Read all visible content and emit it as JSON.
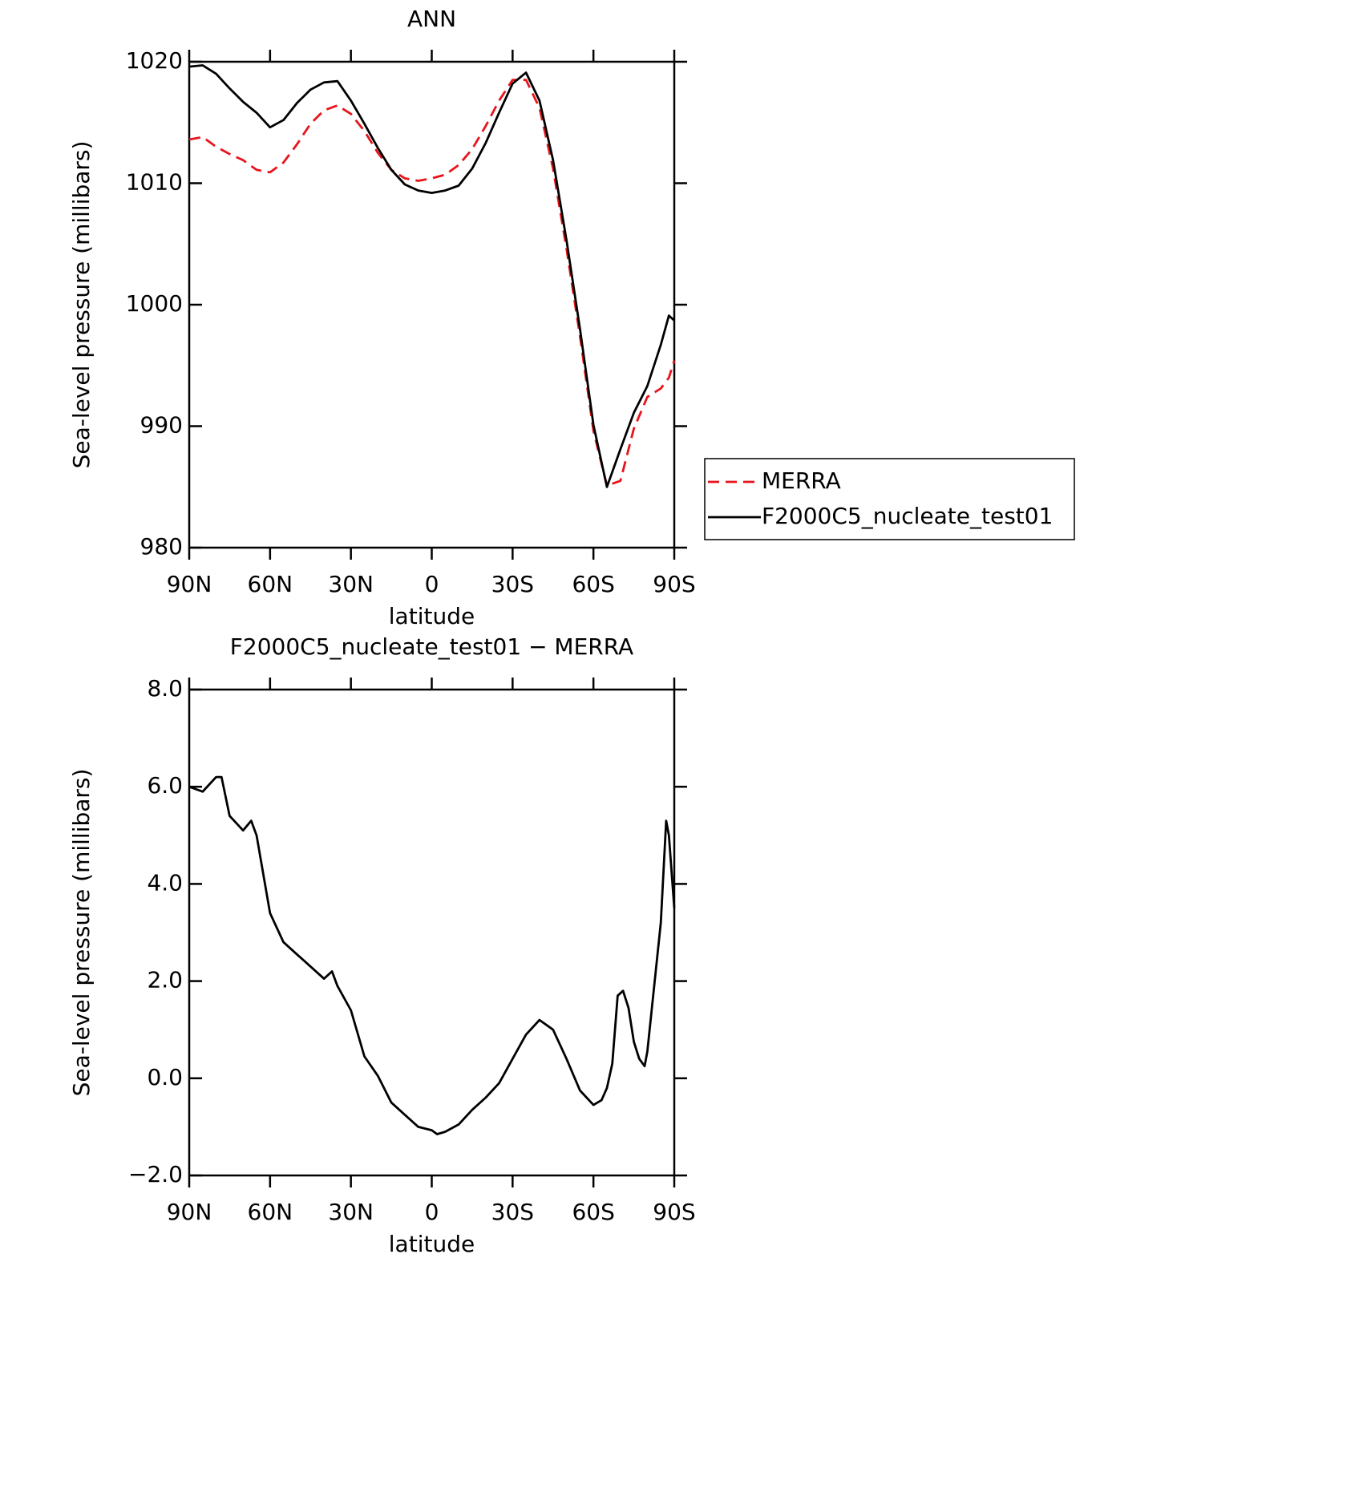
{
  "chart_data": [
    {
      "type": "line",
      "title": "ANN",
      "ylabel": "Sea-level pressure (millibars)",
      "xlabel": "latitude",
      "x": [
        90,
        85,
        80,
        75,
        70,
        65,
        60,
        55,
        50,
        45,
        40,
        35,
        30,
        25,
        20,
        15,
        10,
        5,
        0,
        -5,
        -10,
        -15,
        -20,
        -25,
        -30,
        -35,
        -40,
        -45,
        -50,
        -55,
        -60,
        -65,
        -70,
        -75,
        -80,
        -85,
        -88,
        -90
      ],
      "series": [
        {
          "name": "MERRA",
          "color": "#e8141b",
          "linestyle": "dashed",
          "values": [
            1013.6,
            1013.8,
            1013.0,
            1012.4,
            1011.9,
            1011.1,
            1010.9,
            1011.7,
            1013.2,
            1014.9,
            1016.0,
            1016.4,
            1015.7,
            1014.3,
            1012.5,
            1011.1,
            1010.4,
            1010.2,
            1010.4,
            1010.7,
            1011.5,
            1012.8,
            1014.7,
            1016.8,
            1018.5,
            1018.5,
            1016.2,
            1011.2,
            1004.6,
            997.4,
            989.6,
            985.1,
            985.5,
            989.8,
            992.4,
            993.1,
            994.0,
            995.4
          ]
        },
        {
          "name": "F2000C5_nucleate_test01",
          "color": "#000000",
          "linestyle": "solid",
          "values": [
            1019.6,
            1019.7,
            1019.0,
            1017.8,
            1016.7,
            1015.8,
            1014.6,
            1015.2,
            1016.6,
            1017.7,
            1018.3,
            1018.4,
            1016.8,
            1014.9,
            1012.9,
            1011.1,
            1009.9,
            1009.4,
            1009.2,
            1009.4,
            1009.8,
            1011.2,
            1013.3,
            1015.8,
            1018.2,
            1019.1,
            1016.8,
            1011.9,
            1005.3,
            998.0,
            990.1,
            985.0,
            988.1,
            991.1,
            993.3,
            996.7,
            999.1,
            998.7
          ]
        }
      ],
      "xlim": [
        90,
        -90
      ],
      "xticks": [
        {
          "value": 90,
          "label": "90N"
        },
        {
          "value": 60,
          "label": "60N"
        },
        {
          "value": 30,
          "label": "30N"
        },
        0,
        {
          "value": -30,
          "label": "30S"
        },
        {
          "value": -60,
          "label": "60S"
        },
        {
          "value": -90,
          "label": "90S"
        }
      ],
      "ylim": [
        980,
        1020
      ],
      "yticks": [
        980,
        990,
        1000,
        1010,
        1020
      ],
      "legend": "right"
    },
    {
      "type": "line",
      "title": "F2000C5_nucleate_test01 − MERRA",
      "ylabel": "Sea-level pressure (millibars)",
      "xlabel": "latitude",
      "x": [
        90,
        85,
        80,
        78,
        75,
        70,
        67,
        65,
        60,
        55,
        50,
        45,
        40,
        37,
        35,
        30,
        25,
        20,
        15,
        10,
        5,
        0,
        -2,
        -5,
        -10,
        -15,
        -20,
        -25,
        -30,
        -35,
        -40,
        -45,
        -50,
        -55,
        -60,
        -63,
        -65,
        -67,
        -69,
        -71,
        -73,
        -75,
        -77,
        -79,
        -80,
        -85,
        -87,
        -88,
        -90
      ],
      "color": "#000000",
      "values": [
        6.0,
        5.9,
        6.2,
        6.2,
        5.4,
        5.1,
        5.3,
        5.0,
        3.4,
        2.8,
        2.55,
        2.3,
        2.05,
        2.2,
        1.9,
        1.4,
        0.45,
        0.05,
        -0.5,
        -0.75,
        -1.0,
        -1.07,
        -1.15,
        -1.1,
        -0.95,
        -0.65,
        -0.4,
        -0.1,
        0.4,
        0.9,
        1.2,
        1.0,
        0.4,
        -0.25,
        -0.55,
        -0.45,
        -0.2,
        0.3,
        1.7,
        1.8,
        1.45,
        0.75,
        0.4,
        0.25,
        0.55,
        3.2,
        5.3,
        5.0,
        3.5
      ],
      "xlim": [
        90,
        -90
      ],
      "xticks": [
        {
          "value": 90,
          "label": "90N"
        },
        {
          "value": 60,
          "label": "60N"
        },
        {
          "value": 30,
          "label": "30N"
        },
        0,
        {
          "value": -30,
          "label": "30S"
        },
        {
          "value": -60,
          "label": "60S"
        },
        {
          "value": -90,
          "label": "90S"
        }
      ],
      "ylim": [
        -2,
        8
      ],
      "yticks": [
        {
          "value": -2,
          "label": "−2.0"
        },
        {
          "value": 0,
          "label": "0.0"
        },
        {
          "value": 2,
          "label": "2.0"
        },
        {
          "value": 4,
          "label": "4.0"
        },
        {
          "value": 6,
          "label": "6.0"
        },
        {
          "value": 8,
          "label": "8.0"
        }
      ]
    }
  ]
}
